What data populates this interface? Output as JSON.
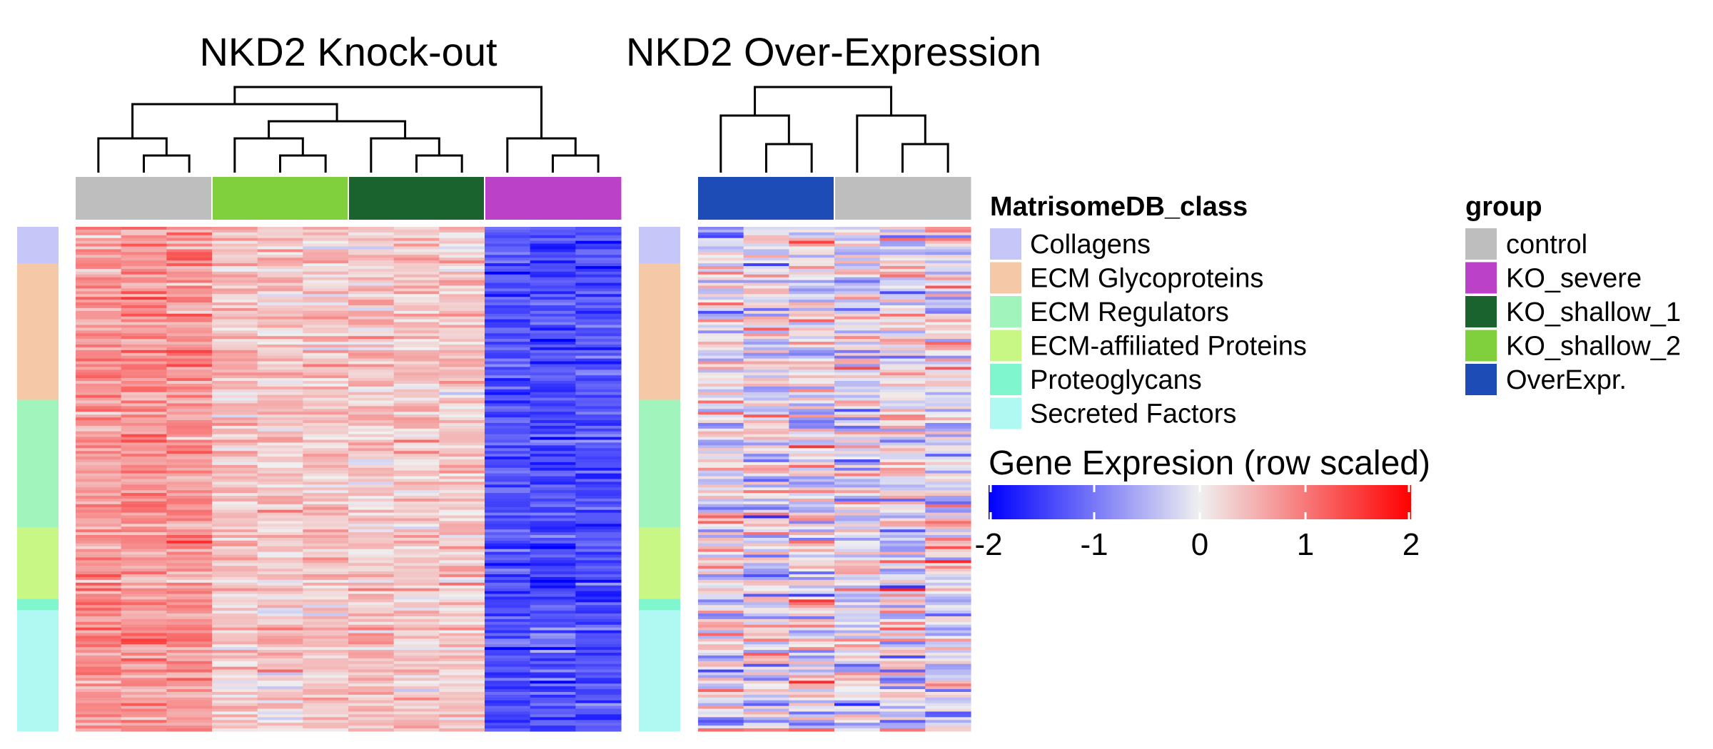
{
  "chart_data": {
    "type": "heatmap",
    "panels": [
      {
        "title": "NKD2 Knock-out",
        "columns": [
          "control",
          "control",
          "control",
          "KO_shallow_2",
          "KO_shallow_2",
          "KO_shallow_2",
          "KO_shallow_1",
          "KO_shallow_1",
          "KO_shallow_1",
          "KO_severe",
          "KO_severe",
          "KO_severe"
        ],
        "dendrogram_merges": [
          [
            1,
            2
          ],
          [
            0,
            -1
          ],
          [
            4,
            5
          ],
          [
            3,
            -3
          ],
          [
            7,
            8
          ],
          [
            6,
            -5
          ],
          [
            -4,
            -6
          ],
          [
            -2,
            -7
          ],
          [
            10,
            11
          ],
          [
            9,
            -9
          ],
          [
            -8,
            -10
          ]
        ],
        "cluster_tendency": [
          0.8,
          0.8,
          0.8,
          0.35,
          0.35,
          0.35,
          0.35,
          0.35,
          0.35,
          -1.35,
          -1.35,
          -1.35
        ]
      },
      {
        "title": "NKD2 Over-Expression",
        "columns": [
          "OverExpr.",
          "OverExpr.",
          "OverExpr.",
          "control",
          "control",
          "control"
        ],
        "dendrogram_merges": [
          [
            1,
            2
          ],
          [
            0,
            -1
          ],
          [
            4,
            5
          ],
          [
            3,
            -3
          ],
          [
            -2,
            -4
          ]
        ],
        "cluster_tendency": [
          0,
          0,
          0,
          0,
          0,
          0
        ]
      }
    ],
    "row_annotation": {
      "name": "MatrisomeDB_class",
      "row_fractions": [
        {
          "class": "Collagens",
          "fraction": 0.073
        },
        {
          "class": "ECM Glycoproteins",
          "fraction": 0.27
        },
        {
          "class": "ECM Regulators",
          "fraction": 0.253
        },
        {
          "class": "ECM-affiliated Proteins",
          "fraction": 0.142
        },
        {
          "class": "Proteoglycans",
          "fraction": 0.022
        },
        {
          "class": "Secreted Factors",
          "fraction": 0.24
        }
      ]
    },
    "color_scale": {
      "title": "Gene Expresion (row scaled)",
      "min": -2,
      "max": 2,
      "ticks": [
        -2,
        -1,
        0,
        1,
        2
      ],
      "colors": {
        "low": "#0000FF",
        "mid": "#F0F0F0",
        "high": "#FF0000"
      }
    },
    "legends": {
      "class": {
        "title": "MatrisomeDB_class",
        "items": [
          {
            "label": "Collagens",
            "color": "#C6C6F8"
          },
          {
            "label": "ECM Glycoproteins",
            "color": "#F5C8A7"
          },
          {
            "label": "ECM Regulators",
            "color": "#A0F4BC"
          },
          {
            "label": "ECM-affiliated Proteins",
            "color": "#C8F786"
          },
          {
            "label": "Proteoglycans",
            "color": "#80F6CE"
          },
          {
            "label": "Secreted Factors",
            "color": "#B0F8F2"
          }
        ]
      },
      "group": {
        "title": "group",
        "items": [
          {
            "label": "control",
            "color": "#BEBEBE"
          },
          {
            "label": "KO_severe",
            "color": "#BC41C9"
          },
          {
            "label": "KO_shallow_1",
            "color": "#1A622E"
          },
          {
            "label": "KO_shallow_2",
            "color": "#80D03D"
          },
          {
            "label": "OverExpr.",
            "color": "#1D4CB7"
          }
        ]
      }
    }
  }
}
